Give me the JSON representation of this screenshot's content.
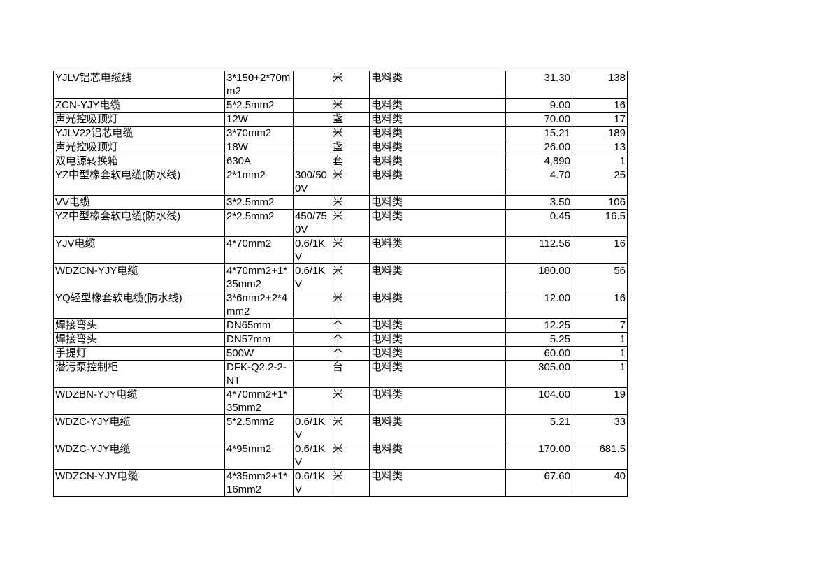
{
  "rows": [
    {
      "name": "YJLV铝芯电缆线",
      "spec": "3*150+2*70mm2",
      "voltage": "",
      "unit": "米",
      "category": "电料类",
      "price": "31.30",
      "qty": "138",
      "tall": true
    },
    {
      "name": "ZCN-YJY电缆",
      "spec": "5*2.5mm2",
      "voltage": "",
      "unit": "米",
      "category": "电料类",
      "price": "9.00",
      "qty": "16"
    },
    {
      "name": "声光控吸顶灯",
      "spec": "12W",
      "voltage": "",
      "unit": "盏",
      "category": "电料类",
      "price": "70.00",
      "qty": "17"
    },
    {
      "name": "YJLV22铝芯电缆",
      "spec": "3*70mm2",
      "voltage": "",
      "unit": "米",
      "category": "电料类",
      "price": "15.21",
      "qty": "189"
    },
    {
      "name": "声光控吸顶灯",
      "spec": "18W",
      "voltage": "",
      "unit": "盏",
      "category": "电料类",
      "price": "26.00",
      "qty": "13"
    },
    {
      "name": "双电源转换箱",
      "spec": "630A",
      "voltage": "",
      "unit": "套",
      "category": "电料类",
      "price": "4,890",
      "qty": "1"
    },
    {
      "name": "YZ中型橡套软电缆(防水线)",
      "spec": "2*1mm2",
      "voltage": "300/500V",
      "unit": "米",
      "category": "电料类",
      "price": "4.70",
      "qty": "25",
      "tall": true
    },
    {
      "name": "VV电缆",
      "spec": "3*2.5mm2",
      "voltage": "",
      "unit": "米",
      "category": "电料类",
      "price": "3.50",
      "qty": "106"
    },
    {
      "name": "YZ中型橡套软电缆(防水线)",
      "spec": "2*2.5mm2",
      "voltage": "450/750V",
      "unit": "米",
      "category": "电料类",
      "price": "0.45",
      "qty": "16.5",
      "tall": true
    },
    {
      "name": "YJV电缆",
      "spec": "4*70mm2",
      "voltage": "0.6/1KV",
      "unit": "米",
      "category": "电料类",
      "price": "112.56",
      "qty": "16",
      "tall": true
    },
    {
      "name": "WDZCN-YJY电缆",
      "spec": "4*70mm2+1*35mm2",
      "voltage": "0.6/1KV",
      "unit": "米",
      "category": "电料类",
      "price": "180.00",
      "qty": "56",
      "tall": true
    },
    {
      "name": "YQ轻型橡套软电缆(防水线)",
      "spec": "3*6mm2+2*4mm2",
      "voltage": "",
      "unit": "米",
      "category": "电料类",
      "price": "12.00",
      "qty": "16",
      "tall": true
    },
    {
      "name": "焊接弯头",
      "spec": "DN65mm",
      "voltage": "",
      "unit": "个",
      "category": "电料类",
      "price": "12.25",
      "qty": "7"
    },
    {
      "name": "焊接弯头",
      "spec": "DN57mm",
      "voltage": "",
      "unit": "个",
      "category": "电料类",
      "price": "5.25",
      "qty": "1"
    },
    {
      "name": "手提灯",
      "spec": "500W",
      "voltage": "",
      "unit": "个",
      "category": "电料类",
      "price": "60.00",
      "qty": "1"
    },
    {
      "name": "潜污泵控制柜",
      "spec": "DFK-Q2.2-2-NT",
      "voltage": "",
      "unit": "台",
      "category": "电料类",
      "price": "305.00",
      "qty": "1",
      "tall": true
    },
    {
      "name": "WDZBN-YJY电缆",
      "spec": "4*70mm2+1*35mm2",
      "voltage": "",
      "unit": "米",
      "category": "电料类",
      "price": "104.00",
      "qty": "19",
      "tall": true
    },
    {
      "name": "WDZC-YJY电缆",
      "spec": "5*2.5mm2",
      "voltage": "0.6/1KV",
      "unit": "米",
      "category": "电料类",
      "price": "5.21",
      "qty": "33",
      "tall": true
    },
    {
      "name": "WDZC-YJY电缆",
      "spec": "4*95mm2",
      "voltage": "0.6/1KV",
      "unit": "米",
      "category": "电料类",
      "price": "170.00",
      "qty": "681.5",
      "tall": true
    },
    {
      "name": "WDZCN-YJY电缆",
      "spec": "4*35mm2+1*16mm2",
      "voltage": "0.6/1KV",
      "unit": "米",
      "category": "电料类",
      "price": "67.60",
      "qty": "40",
      "tall": true
    }
  ]
}
